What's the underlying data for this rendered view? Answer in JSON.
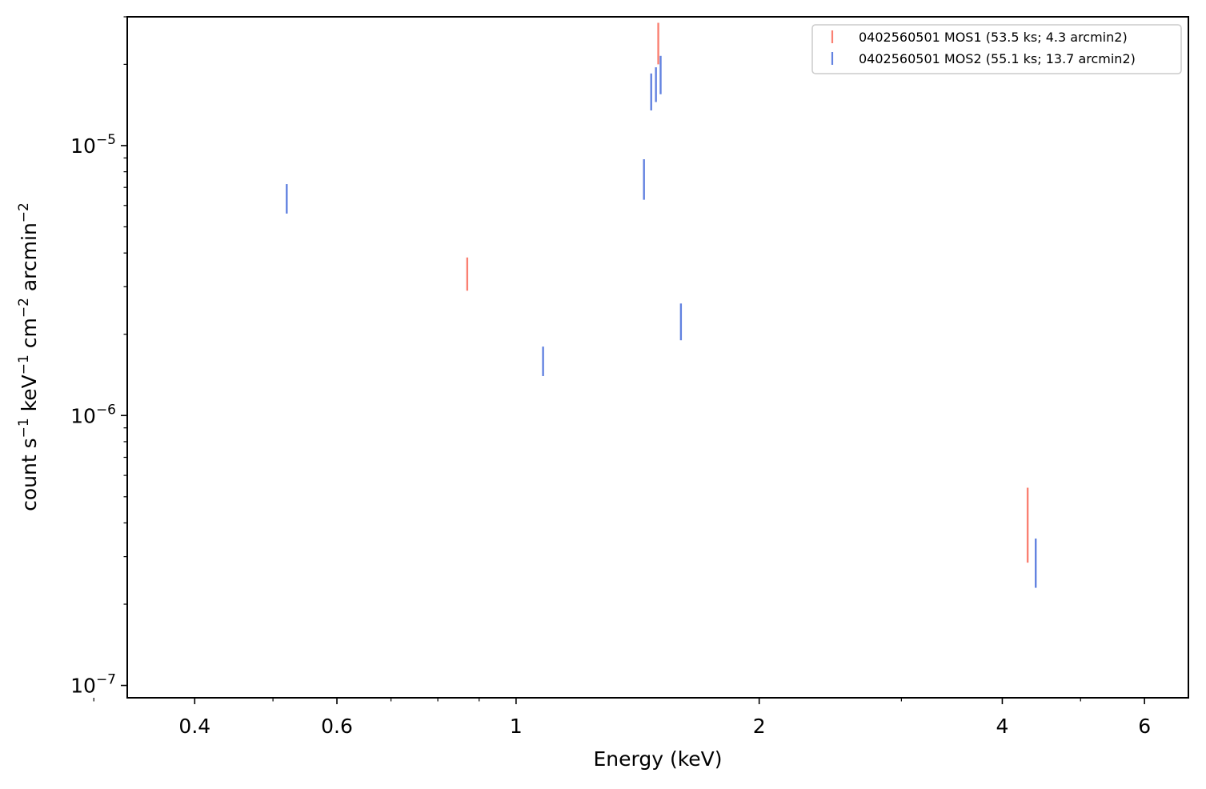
{
  "chart_data": {
    "type": "scatter",
    "xscale": "log",
    "yscale": "log",
    "xlabel": "Energy (keV)",
    "ylabel": "count s⁻¹ keV⁻¹ cm⁻² arcmin⁻²",
    "xlim": [
      0.33,
      6.8
    ],
    "ylim": [
      9e-08,
      3e-05
    ],
    "x_ticks": [
      {
        "value": 0.4,
        "label": "0.4"
      },
      {
        "value": 0.6,
        "label": "0.6"
      },
      {
        "value": 1,
        "label": "1"
      },
      {
        "value": 2,
        "label": "2"
      },
      {
        "value": 4,
        "label": "4"
      },
      {
        "value": 6,
        "label": "6"
      }
    ],
    "x_minor_ticks": [
      0.3,
      0.5,
      0.7,
      0.8,
      0.9,
      3,
      5
    ],
    "y_ticks": [
      {
        "value": 1e-07,
        "base": "10",
        "exp": "−7"
      },
      {
        "value": 1e-06,
        "base": "10",
        "exp": "−6"
      },
      {
        "value": 1e-05,
        "base": "10",
        "exp": "−5"
      }
    ],
    "y_minor_ticks": [
      2e-07,
      3e-07,
      4e-07,
      5e-07,
      6e-07,
      7e-07,
      8e-07,
      9e-07,
      2e-06,
      3e-06,
      4e-06,
      5e-06,
      6e-06,
      7e-06,
      8e-06,
      9e-06,
      2e-05,
      3e-05
    ],
    "grid": false,
    "legend_position": "top-right",
    "series": [
      {
        "name": "0402560501 MOS1 (53.5 ks; 4.3 arcmin2)",
        "color": "#fa8072",
        "points": [
          {
            "x": 0.87,
            "y_low": 2.9e-06,
            "y_high": 3.85e-06
          },
          {
            "x": 1.5,
            "y_low": 2e-05,
            "y_high": 2.85e-05
          },
          {
            "x": 4.3,
            "y_low": 2.85e-07,
            "y_high": 5.4e-07
          }
        ]
      },
      {
        "name": "0402560501 MOS2 (55.1 ks; 13.7 arcmin2)",
        "color": "#6282e0",
        "points": [
          {
            "x": 0.52,
            "y_low": 5.6e-06,
            "y_high": 7.2e-06
          },
          {
            "x": 1.08,
            "y_low": 1.4e-06,
            "y_high": 1.8e-06
          },
          {
            "x": 1.44,
            "y_low": 6.3e-06,
            "y_high": 8.9e-06
          },
          {
            "x": 1.47,
            "y_low": 1.35e-05,
            "y_high": 1.85e-05
          },
          {
            "x": 1.49,
            "y_low": 1.45e-05,
            "y_high": 1.95e-05
          },
          {
            "x": 1.51,
            "y_low": 1.55e-05,
            "y_high": 2.15e-05
          },
          {
            "x": 1.6,
            "y_low": 1.9e-06,
            "y_high": 2.6e-06
          },
          {
            "x": 4.4,
            "y_low": 2.3e-07,
            "y_high": 3.5e-07
          }
        ]
      }
    ]
  }
}
